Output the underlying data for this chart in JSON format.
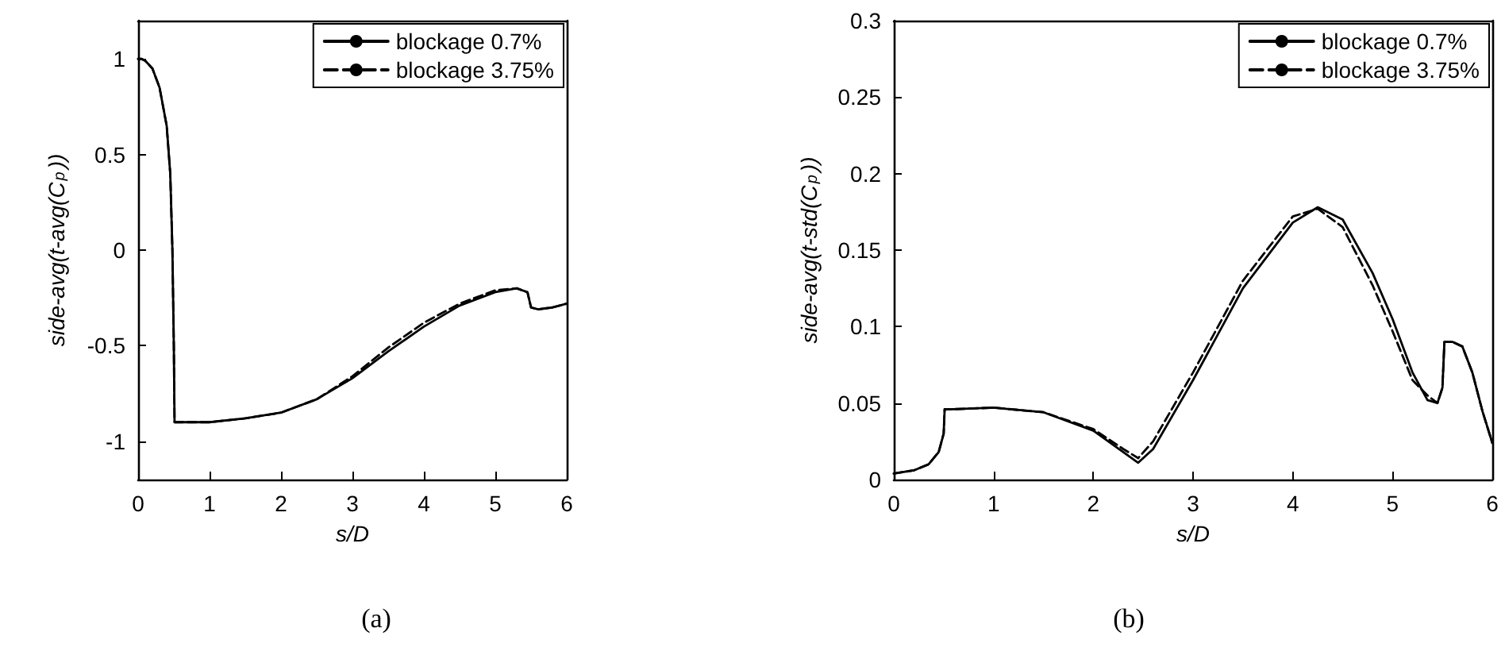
{
  "chart_data": [
    {
      "type": "line",
      "title": "(a)",
      "xlabel": "s/D",
      "ylabel": "side-avg(t-avg(C$_{p}$))",
      "xlim": [
        0,
        6
      ],
      "xticks": [
        0,
        1,
        2,
        3,
        4,
        5,
        6
      ],
      "ylim": [
        -1.2,
        1.2
      ],
      "yticks": [
        -1,
        -0.5,
        0,
        0.5,
        1
      ],
      "grid": false,
      "legend": "top right",
      "marker": "none",
      "x": [
        0,
        0.05,
        0.1,
        0.2,
        0.3,
        0.4,
        0.45,
        0.48,
        0.5,
        0.51,
        0.6,
        1,
        1.5,
        2,
        2.5,
        3,
        3.5,
        4,
        4.5,
        5,
        5.3,
        5.45,
        5.5,
        5.6,
        5.8,
        6
      ],
      "series": [
        {
          "name": "blockage 0.7%",
          "color": "#000000",
          "line_style": "solid",
          "values": [
            1.0,
            1.0,
            0.99,
            0.95,
            0.85,
            0.65,
            0.4,
            0.0,
            -0.5,
            -0.9,
            -0.9,
            -0.9,
            -0.88,
            -0.85,
            -0.78,
            -0.67,
            -0.53,
            -0.4,
            -0.29,
            -0.22,
            -0.2,
            -0.22,
            -0.3,
            -0.31,
            -0.3,
            -0.28
          ]
        },
        {
          "name": "blockage 3.75%",
          "color": "#000000",
          "line_style": "dashed",
          "values": [
            1.0,
            1.0,
            0.99,
            0.95,
            0.85,
            0.65,
            0.4,
            0.0,
            -0.5,
            -0.9,
            -0.9,
            -0.9,
            -0.88,
            -0.85,
            -0.78,
            -0.66,
            -0.51,
            -0.38,
            -0.28,
            -0.21,
            -0.2,
            -0.22,
            -0.3,
            -0.31,
            -0.3,
            -0.28
          ]
        }
      ]
    },
    {
      "type": "line",
      "title": "(b)",
      "xlabel": "s/D",
      "ylabel": "side-avg(t-std(C$_{p}$))",
      "xlim": [
        0,
        6
      ],
      "xticks": [
        0,
        1,
        2,
        3,
        4,
        5,
        6
      ],
      "ylim": [
        0,
        0.3
      ],
      "yticks": [
        0,
        0.05,
        0.1,
        0.15,
        0.2,
        0.25,
        0.3
      ],
      "grid": false,
      "legend": "top right",
      "marker": "none",
      "x": [
        0,
        0.2,
        0.35,
        0.45,
        0.5,
        0.51,
        0.6,
        1,
        1.5,
        2,
        2.3,
        2.45,
        2.6,
        3,
        3.5,
        4,
        4.25,
        4.5,
        4.8,
        5,
        5.2,
        5.35,
        5.45,
        5.5,
        5.52,
        5.6,
        5.7,
        5.8,
        5.9,
        6
      ],
      "series": [
        {
          "name": "blockage 0.7%",
          "color": "#000000",
          "line_style": "solid",
          "values": [
            0.004,
            0.006,
            0.01,
            0.018,
            0.03,
            0.046,
            0.046,
            0.047,
            0.044,
            0.032,
            0.018,
            0.011,
            0.02,
            0.065,
            0.125,
            0.168,
            0.178,
            0.17,
            0.135,
            0.105,
            0.07,
            0.052,
            0.05,
            0.06,
            0.09,
            0.09,
            0.087,
            0.07,
            0.045,
            0.024
          ]
        },
        {
          "name": "blockage 3.75%",
          "color": "#000000",
          "line_style": "dashed",
          "values": [
            0.004,
            0.006,
            0.01,
            0.018,
            0.03,
            0.046,
            0.046,
            0.047,
            0.044,
            0.033,
            0.02,
            0.014,
            0.025,
            0.07,
            0.13,
            0.172,
            0.177,
            0.165,
            0.127,
            0.097,
            0.065,
            0.055,
            0.05,
            0.06,
            0.09,
            0.09,
            0.087,
            0.07,
            0.045,
            0.024
          ]
        }
      ]
    }
  ]
}
